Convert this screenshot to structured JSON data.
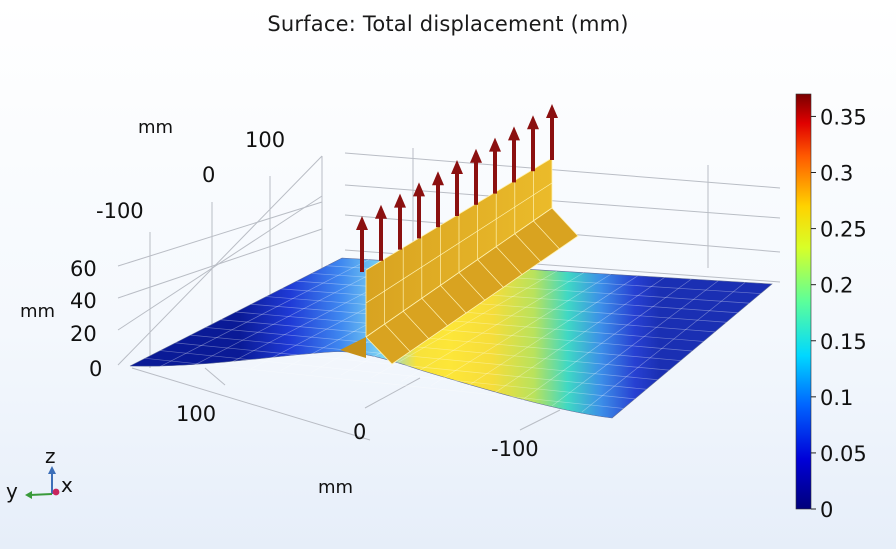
{
  "title": "Surface: Total displacement (mm)",
  "chart_data": {
    "type": "surface-3d",
    "title": "Surface: Total displacement (mm)",
    "quantity": "Total displacement",
    "unit": "mm",
    "colormap": "rainbow (dark blue to dark red)",
    "color_range": [
      0,
      0.37
    ],
    "colorbar_ticks": [
      "0.35",
      "0.3",
      "0.25",
      "0.2",
      "0.15",
      "0.1",
      "0.05",
      "0"
    ],
    "axes": {
      "x": {
        "label": "mm",
        "ticks": [
          "100",
          "0",
          "-100"
        ]
      },
      "y": {
        "label": "mm",
        "ticks": [
          "100",
          "0",
          "-100"
        ]
      },
      "z": {
        "label": "mm",
        "ticks": [
          "60",
          "40",
          "20",
          "0"
        ]
      }
    },
    "triad": {
      "x": "x",
      "y": "y",
      "z": "z"
    },
    "load_arrows": 11,
    "grid": true
  },
  "colors": {
    "arrow": "#8b1010",
    "wall": "#e0ad1e",
    "grid": "#b8bcc4"
  }
}
